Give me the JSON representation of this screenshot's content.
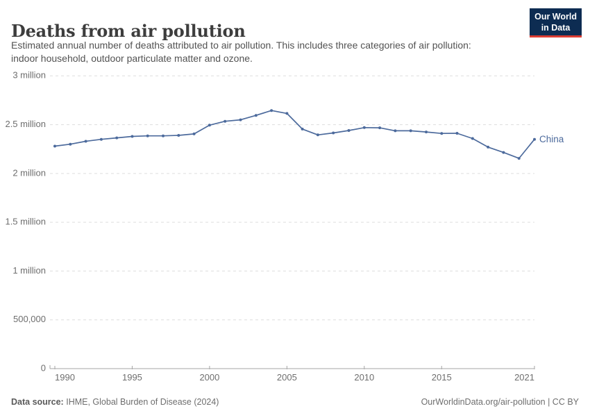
{
  "header": {
    "title": "Deaths from air pollution",
    "subtitle_lines": [
      "Estimated annual number of deaths attributed to air pollution. This includes three categories of air pollution:",
      "indoor household, outdoor particulate matter and ozone."
    ],
    "logo": {
      "line1": "Our World",
      "line2": "in Data"
    }
  },
  "chart_data": {
    "type": "line",
    "title": "Deaths from air pollution",
    "xlabel": "",
    "ylabel": "",
    "xlim": [
      1990,
      2021
    ],
    "ylim": [
      0,
      3000000
    ],
    "grid": "dashed-horizontal",
    "legend": "end-of-line-label",
    "x_ticks": [
      1990,
      1995,
      2000,
      2005,
      2010,
      2015,
      2021
    ],
    "y_ticks": [
      {
        "value": 0,
        "label": "0"
      },
      {
        "value": 500000,
        "label": "500,000"
      },
      {
        "value": 1000000,
        "label": "1 million"
      },
      {
        "value": 1500000,
        "label": "1.5 million"
      },
      {
        "value": 2000000,
        "label": "2 million"
      },
      {
        "value": 2500000,
        "label": "2.5 million"
      },
      {
        "value": 3000000,
        "label": "3 million"
      }
    ],
    "x": [
      1990,
      1991,
      1992,
      1993,
      1994,
      1995,
      1996,
      1997,
      1998,
      1999,
      2000,
      2001,
      2002,
      2003,
      2004,
      2005,
      2006,
      2007,
      2008,
      2009,
      2010,
      2011,
      2012,
      2013,
      2014,
      2015,
      2016,
      2017,
      2018,
      2019,
      2020,
      2021
    ],
    "series": [
      {
        "name": "China",
        "color": "#4c6a9c",
        "values": [
          2280000,
          2300000,
          2330000,
          2350000,
          2365000,
          2380000,
          2385000,
          2385000,
          2390000,
          2405000,
          2495000,
          2535000,
          2550000,
          2595000,
          2645000,
          2615000,
          2455000,
          2395000,
          2415000,
          2440000,
          2470000,
          2468000,
          2437000,
          2437000,
          2425000,
          2410000,
          2412000,
          2358000,
          2270000,
          2215000,
          2155000,
          2350000
        ]
      }
    ]
  },
  "footer": {
    "source_label": "Data source:",
    "source_value": "IHME, Global Burden of Disease (2024)",
    "right_text": "OurWorldinData.org/air-pollution | CC BY"
  },
  "colors": {
    "line": "#4c6a9c",
    "grid": "#dddddd",
    "axis": "#a5a5a5",
    "tick_label": "#6e6e6e",
    "title": "#3d3d3d",
    "logo_bg": "#0d2c52",
    "logo_accent": "#dc3d33"
  }
}
